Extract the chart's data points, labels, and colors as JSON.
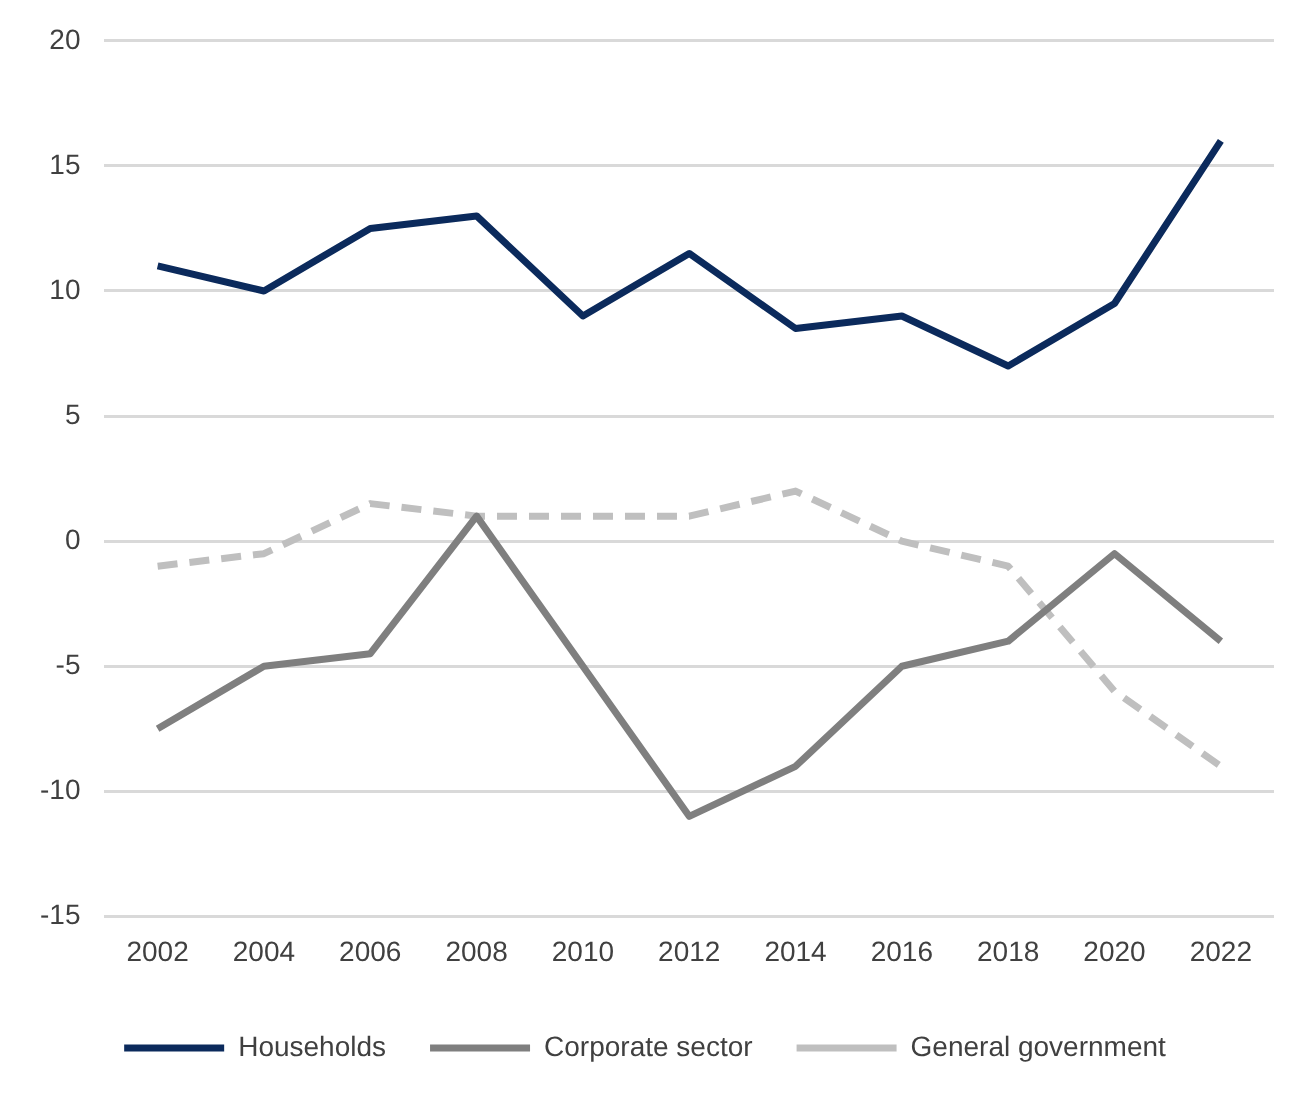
{
  "chart_data": {
    "type": "line",
    "categories": [
      "2002",
      "2004",
      "2006",
      "2008",
      "2010",
      "2012",
      "2014",
      "2016",
      "2018",
      "2020",
      "2022"
    ],
    "series": [
      {
        "name": "Households",
        "color": "#0b2a5c",
        "values": [
          11,
          10,
          12.5,
          13,
          9,
          11.5,
          8.5,
          9,
          7,
          9.5,
          16
        ],
        "line_style": "solid"
      },
      {
        "name": "Corporate sector",
        "color": "#7f7f7f",
        "values": [
          -7.5,
          -5,
          -4.5,
          1,
          -5,
          -11,
          -9,
          -5,
          -4,
          -0.5,
          -4
        ],
        "line_style": "solid"
      },
      {
        "name": "General government",
        "color": "#bfbfbf",
        "values": [
          -1,
          -0.5,
          1.5,
          1,
          1,
          1,
          2,
          0,
          -1,
          -6,
          -9
        ],
        "line_style": "dashed"
      }
    ],
    "ylim": [
      -15,
      20
    ],
    "yticks": [
      -15,
      -10,
      -5,
      0,
      5,
      10,
      15,
      20
    ],
    "grid": "y",
    "legend": "bottom",
    "marker": "none"
  }
}
